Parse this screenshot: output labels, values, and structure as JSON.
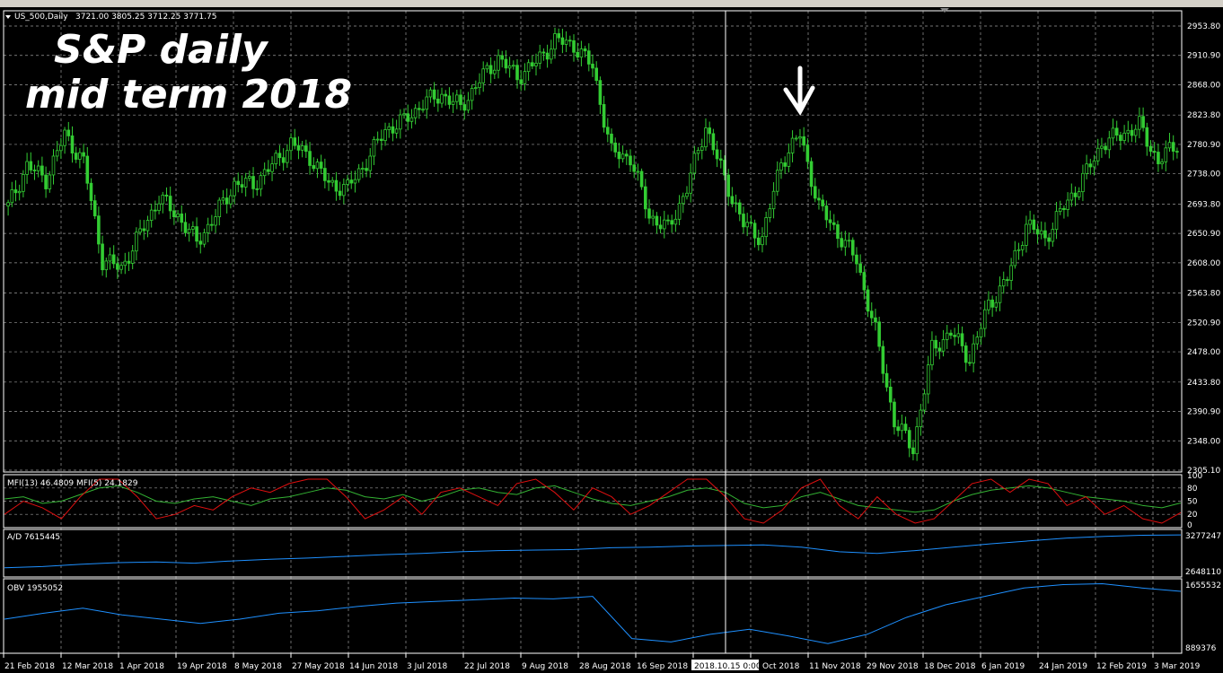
{
  "header": {
    "symbol": "US_500,Daily",
    "ohlc": "3721.00 3805.25 3712.25 3771.75"
  },
  "annotation": {
    "line1": "S&P daily",
    "line2": "mid term 2018"
  },
  "crosshair_label": "2018.10.15 0:00",
  "colors": {
    "background": "#000000",
    "candle": "#33cc33",
    "grid": "#9a9a9a",
    "mfi13": "#33b233",
    "mfi5": "#e01010",
    "ad": "#1e90ff",
    "obv": "#1e90ff",
    "annotation": "#ffffff"
  },
  "chart_data": [
    {
      "type": "candlestick",
      "title": "US_500,Daily",
      "ylim": [
        2305.1,
        2953.8
      ],
      "y_ticks": [
        "2953.80",
        "2910.90",
        "2868.00",
        "2823.80",
        "2780.90",
        "2738.00",
        "2693.80",
        "2650.90",
        "2608.00",
        "2563.80",
        "2520.90",
        "2478.00",
        "2433.80",
        "2390.90",
        "2348.00",
        "2305.10"
      ],
      "x_ticks": [
        "21 Feb 2018",
        "12 Mar 2018",
        "1 Apr 2018",
        "19 Apr 2018",
        "8 May 2018",
        "27 May 2018",
        "14 Jun 2018",
        "3 Jul 2018",
        "22 Jul 2018",
        "9 Aug 2018",
        "28 Aug 2018",
        "16 Sep 2018",
        "",
        "Oct 2018",
        "11 Nov 2018",
        "29 Nov 2018",
        "18 Dec 2018",
        "6 Jan 2019",
        "24 Jan 2019",
        "12 Feb 2019",
        "3 Mar 2019"
      ],
      "grid": true,
      "closes_sampled": [
        2690,
        2750,
        2730,
        2795,
        2755,
        2612,
        2600,
        2650,
        2703,
        2677,
        2638,
        2677,
        2723,
        2723,
        2750,
        2782,
        2763,
        2723,
        2717,
        2756,
        2802,
        2815,
        2841,
        2854,
        2835,
        2874,
        2907,
        2880,
        2900,
        2933,
        2926,
        2894,
        2769,
        2762,
        2677,
        2657,
        2717,
        2808,
        2730,
        2664,
        2644,
        2756,
        2795,
        2690,
        2651,
        2612,
        2507,
        2376,
        2337,
        2481,
        2507,
        2468,
        2546,
        2585,
        2664,
        2644,
        2690,
        2730,
        2782,
        2795,
        2808,
        2756,
        2782
      ]
    },
    {
      "type": "line",
      "title": "MFI(13) 46.4809  MFI(5) 24.1829",
      "ylim": [
        0,
        100
      ],
      "y_ticks": [
        "100",
        "80",
        "50",
        "20",
        "0"
      ],
      "series": [
        {
          "name": "MFI(13) 46.4809",
          "values": [
            55,
            60,
            45,
            50,
            65,
            80,
            85,
            70,
            50,
            45,
            55,
            60,
            50,
            40,
            55,
            60,
            70,
            80,
            75,
            60,
            55,
            65,
            50,
            60,
            75,
            80,
            70,
            65,
            80,
            85,
            70,
            55,
            45,
            40,
            50,
            60,
            75,
            80,
            70,
            45,
            35,
            40,
            60,
            70,
            55,
            40,
            35,
            30,
            25,
            30,
            50,
            65,
            75,
            80,
            85,
            80,
            70,
            60,
            55,
            50,
            40,
            35,
            46
          ]
        },
        {
          "name": "MFI(5) 24.1829",
          "values": [
            20,
            50,
            35,
            10,
            60,
            100,
            100,
            60,
            10,
            20,
            40,
            30,
            60,
            80,
            70,
            90,
            100,
            100,
            60,
            10,
            30,
            60,
            20,
            70,
            80,
            60,
            40,
            90,
            100,
            70,
            30,
            80,
            60,
            20,
            40,
            70,
            100,
            100,
            60,
            10,
            0,
            30,
            80,
            100,
            40,
            10,
            60,
            20,
            0,
            10,
            50,
            90,
            100,
            70,
            100,
            90,
            40,
            60,
            20,
            40,
            10,
            0,
            24
          ]
        }
      ]
    },
    {
      "type": "line",
      "title": "A/D 7615445",
      "ylim": [
        2648110,
        3277247
      ],
      "y_ticks": [
        "3277247",
        "2648110"
      ],
      "series": [
        {
          "name": "A/D 7615445",
          "values": [
            2700000,
            2720000,
            2760000,
            2790000,
            2800000,
            2780000,
            2820000,
            2850000,
            2870000,
            2900000,
            2930000,
            2950000,
            2980000,
            3000000,
            3010000,
            3020000,
            3050000,
            3060000,
            3080000,
            3090000,
            3100000,
            3060000,
            2980000,
            2950000,
            3000000,
            3060000,
            3120000,
            3170000,
            3220000,
            3250000,
            3270000,
            3275000
          ]
        }
      ]
    },
    {
      "type": "line",
      "title": "OBV 1955052",
      "ylim": [
        889376,
        1655532
      ],
      "y_ticks": [
        "1655532",
        "889376"
      ],
      "series": [
        {
          "name": "OBV 1955052",
          "values": [
            1230000,
            1300000,
            1360000,
            1280000,
            1230000,
            1180000,
            1230000,
            1300000,
            1330000,
            1380000,
            1420000,
            1440000,
            1460000,
            1480000,
            1470000,
            1500000,
            1000000,
            960000,
            1050000,
            1110000,
            1030000,
            940000,
            1050000,
            1250000,
            1400000,
            1500000,
            1600000,
            1640000,
            1650000,
            1600000,
            1560000
          ]
        }
      ]
    }
  ]
}
